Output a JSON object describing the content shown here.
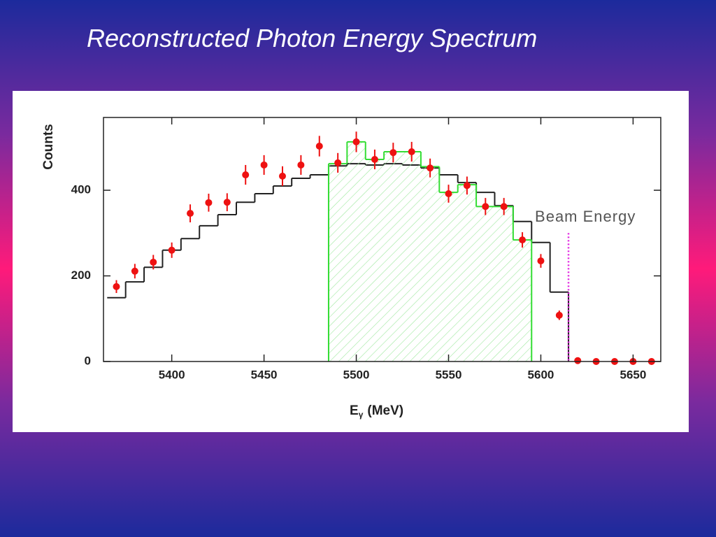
{
  "chart_data": {
    "type": "histogram",
    "title": "Reconstructed Photon Energy Spectrum",
    "y_label": "Counts",
    "x_label": {
      "main": "E",
      "sub": "γ",
      "unit": "(MeV)"
    },
    "xlim": [
      5363,
      5665
    ],
    "ylim": [
      0,
      570
    ],
    "xticks": [
      5400,
      5450,
      5500,
      5550,
      5600,
      5650
    ],
    "yticks": [
      0,
      200,
      400
    ],
    "annotation": {
      "text": "Beam Energy",
      "x": 5615,
      "color": "#e020e0"
    },
    "points": {
      "color": "#ee1111",
      "x": [
        5370,
        5380,
        5390,
        5400,
        5410,
        5420,
        5430,
        5440,
        5450,
        5460,
        5470,
        5480,
        5490,
        5500,
        5510,
        5520,
        5530,
        5540,
        5550,
        5560,
        5570,
        5580,
        5590,
        5600,
        5610,
        5620,
        5630,
        5640,
        5650,
        5660
      ],
      "values": [
        175,
        211,
        232,
        260,
        346,
        371,
        372,
        436,
        459,
        433,
        459,
        503,
        464,
        513,
        472,
        488,
        490,
        452,
        392,
        411,
        362,
        362,
        284,
        235,
        108,
        2,
        0,
        0,
        0,
        0
      ],
      "errors": [
        15,
        17,
        17,
        18,
        21,
        21,
        21,
        23,
        23,
        23,
        23,
        24,
        23,
        24,
        23,
        23,
        23,
        22,
        21,
        21,
        20,
        20,
        18,
        16,
        11,
        2,
        2,
        2,
        2,
        2
      ]
    },
    "histograms": [
      {
        "color": "#222222",
        "hatch": false,
        "bins": [
          5365,
          5375,
          5385,
          5395,
          5405,
          5415,
          5425,
          5435,
          5445,
          5455,
          5465,
          5475,
          5485,
          5495,
          5505,
          5515,
          5525,
          5535,
          5545,
          5555,
          5565,
          5575,
          5585,
          5595,
          5605,
          5615
        ],
        "values": [
          149,
          186,
          220,
          260,
          287,
          317,
          343,
          372,
          392,
          410,
          428,
          436,
          457,
          462,
          459,
          462,
          459,
          452,
          436,
          418,
          395,
          364,
          327,
          278,
          162
        ]
      },
      {
        "color": "#33dd33",
        "hatch": true,
        "bins": [
          5485,
          5495,
          5505,
          5515,
          5525,
          5535,
          5545,
          5555,
          5565,
          5575,
          5585,
          5595
        ],
        "values": [
          462,
          513,
          472,
          490,
          490,
          455,
          395,
          413,
          362,
          362,
          284
        ]
      }
    ]
  }
}
